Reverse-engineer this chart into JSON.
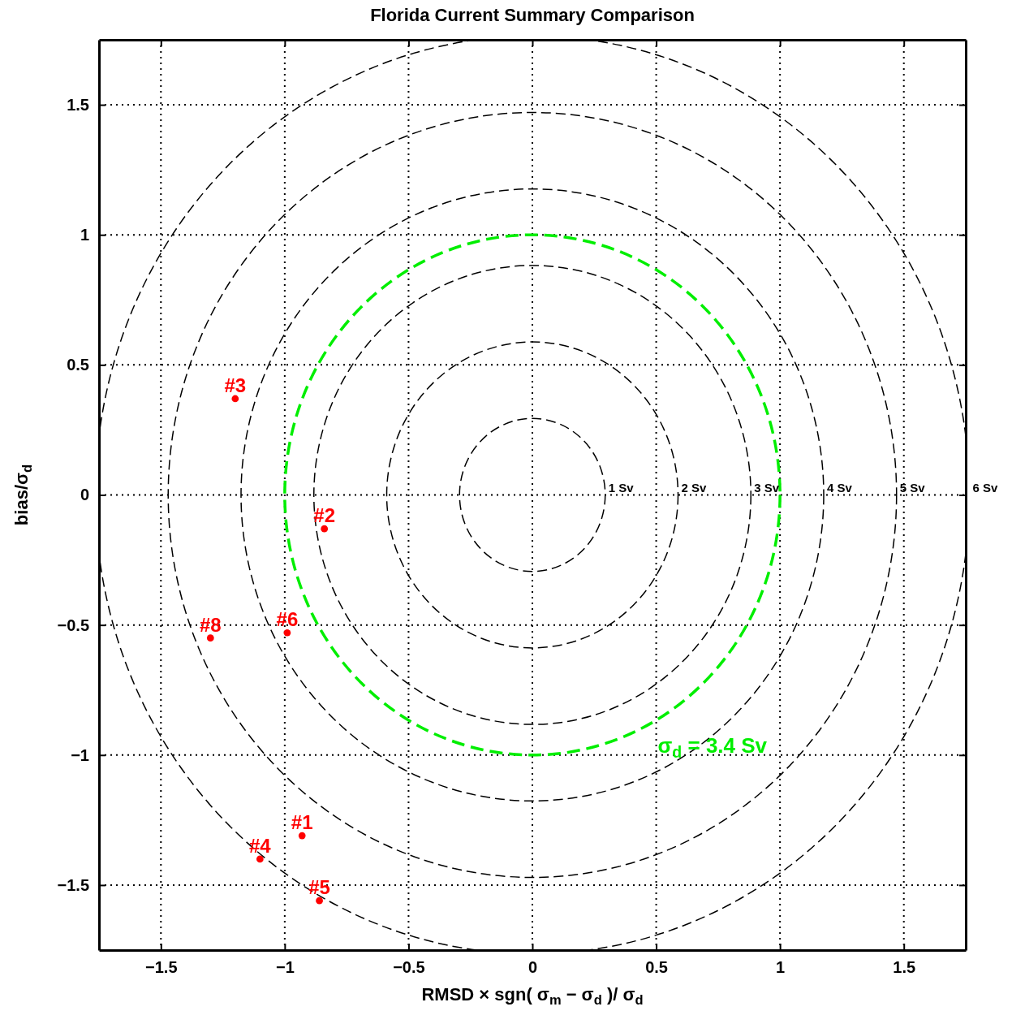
{
  "chart_data": {
    "type": "scatter",
    "title": "Florida Current Summary Comparison",
    "xlabel": "RMSD × sgn( σ$_{m}$ − σ$_{d}$ )/ σ$_{d}$",
    "ylabel": "bias/σ$_{d}$",
    "xlim": [
      -1.75,
      1.75
    ],
    "ylim": [
      -1.75,
      1.75
    ],
    "xticks": [
      {
        "value": -1.5,
        "label": "−1.5"
      },
      {
        "value": -1,
        "label": "−1"
      },
      {
        "value": -0.5,
        "label": "−0.5"
      },
      0,
      0.5,
      1,
      1.5
    ],
    "yticks": [
      {
        "value": -1.5,
        "label": "−1.5"
      },
      {
        "value": -1,
        "label": "−1"
      },
      {
        "value": -0.5,
        "label": "−0.5"
      },
      0,
      0.5,
      1,
      1.5
    ],
    "grid": true,
    "legend": false,
    "marker": "circle",
    "series": [
      {
        "name": "#1",
        "color": "#ff0000",
        "x": [
          -0.93
        ],
        "values": [
          -1.31
        ]
      },
      {
        "name": "#2",
        "color": "#ff0000",
        "x": [
          -0.84
        ],
        "values": [
          -0.13
        ]
      },
      {
        "name": "#3",
        "color": "#ff0000",
        "x": [
          -1.2
        ],
        "values": [
          0.37
        ]
      },
      {
        "name": "#4",
        "color": "#ff0000",
        "x": [
          -1.1
        ],
        "values": [
          -1.4
        ]
      },
      {
        "name": "#5",
        "color": "#ff0000",
        "x": [
          -0.86
        ],
        "values": [
          -1.56
        ]
      },
      {
        "name": "#6",
        "color": "#ff0000",
        "x": [
          -0.99
        ],
        "values": [
          -0.53
        ]
      },
      {
        "name": "#8",
        "color": "#ff0000",
        "x": [
          -1.3
        ],
        "values": [
          -0.55
        ]
      }
    ],
    "annotations": [
      "1 Sv",
      "2 Sv",
      "3 Sv",
      "4 Sv",
      "5 Sv",
      "6 Sv",
      "σ$_{d}$ = 3.4 Sv"
    ]
  }
}
